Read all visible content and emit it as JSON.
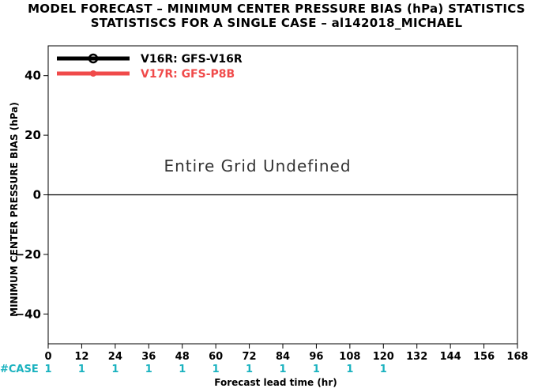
{
  "title_line1": "MODEL FORECAST – MINIMUM CENTER PRESSURE BIAS (hPa) STATISTICS",
  "title_line2": "STATISTISCS FOR A SINGLE CASE – al142018_MICHAEL",
  "colors": {
    "axis": "#000000",
    "case": "#1ab2bf",
    "v16r": "#000000",
    "v17r": "#f04a4a"
  },
  "chart_data": {
    "type": "line",
    "title": "MODEL FORECAST – MINIMUM CENTER PRESSURE BIAS (hPa) STATISTICS",
    "subtitle": "STATISTISCS FOR A SINGLE CASE – al142018_MICHAEL",
    "xlabel": "Forecast lead time (hr)",
    "ylabel": "MINIMUM CENTER PRESSURE BIAS (hPa)",
    "xlim": [
      0,
      168
    ],
    "ylim": [
      -50,
      50
    ],
    "x_ticks": [
      0,
      12,
      24,
      36,
      48,
      60,
      72,
      84,
      96,
      108,
      120,
      132,
      144,
      156,
      168
    ],
    "y_ticks": [
      -40,
      -20,
      0,
      20,
      40
    ],
    "zero_line": 0,
    "grid": false,
    "legend_position": "top-left",
    "series": [
      {
        "name": "V16R: GFS-V16R",
        "color": "#000000",
        "values": []
      },
      {
        "name": "V17R: GFS-P8B",
        "color": "#f04a4a",
        "values": []
      }
    ],
    "annotation": "Entire Grid Undefined",
    "case_label": "#CASE",
    "case_x": [
      0,
      12,
      24,
      36,
      48,
      60,
      72,
      84,
      96,
      108,
      120
    ],
    "case_counts": [
      1,
      1,
      1,
      1,
      1,
      1,
      1,
      1,
      1,
      1,
      1
    ]
  }
}
